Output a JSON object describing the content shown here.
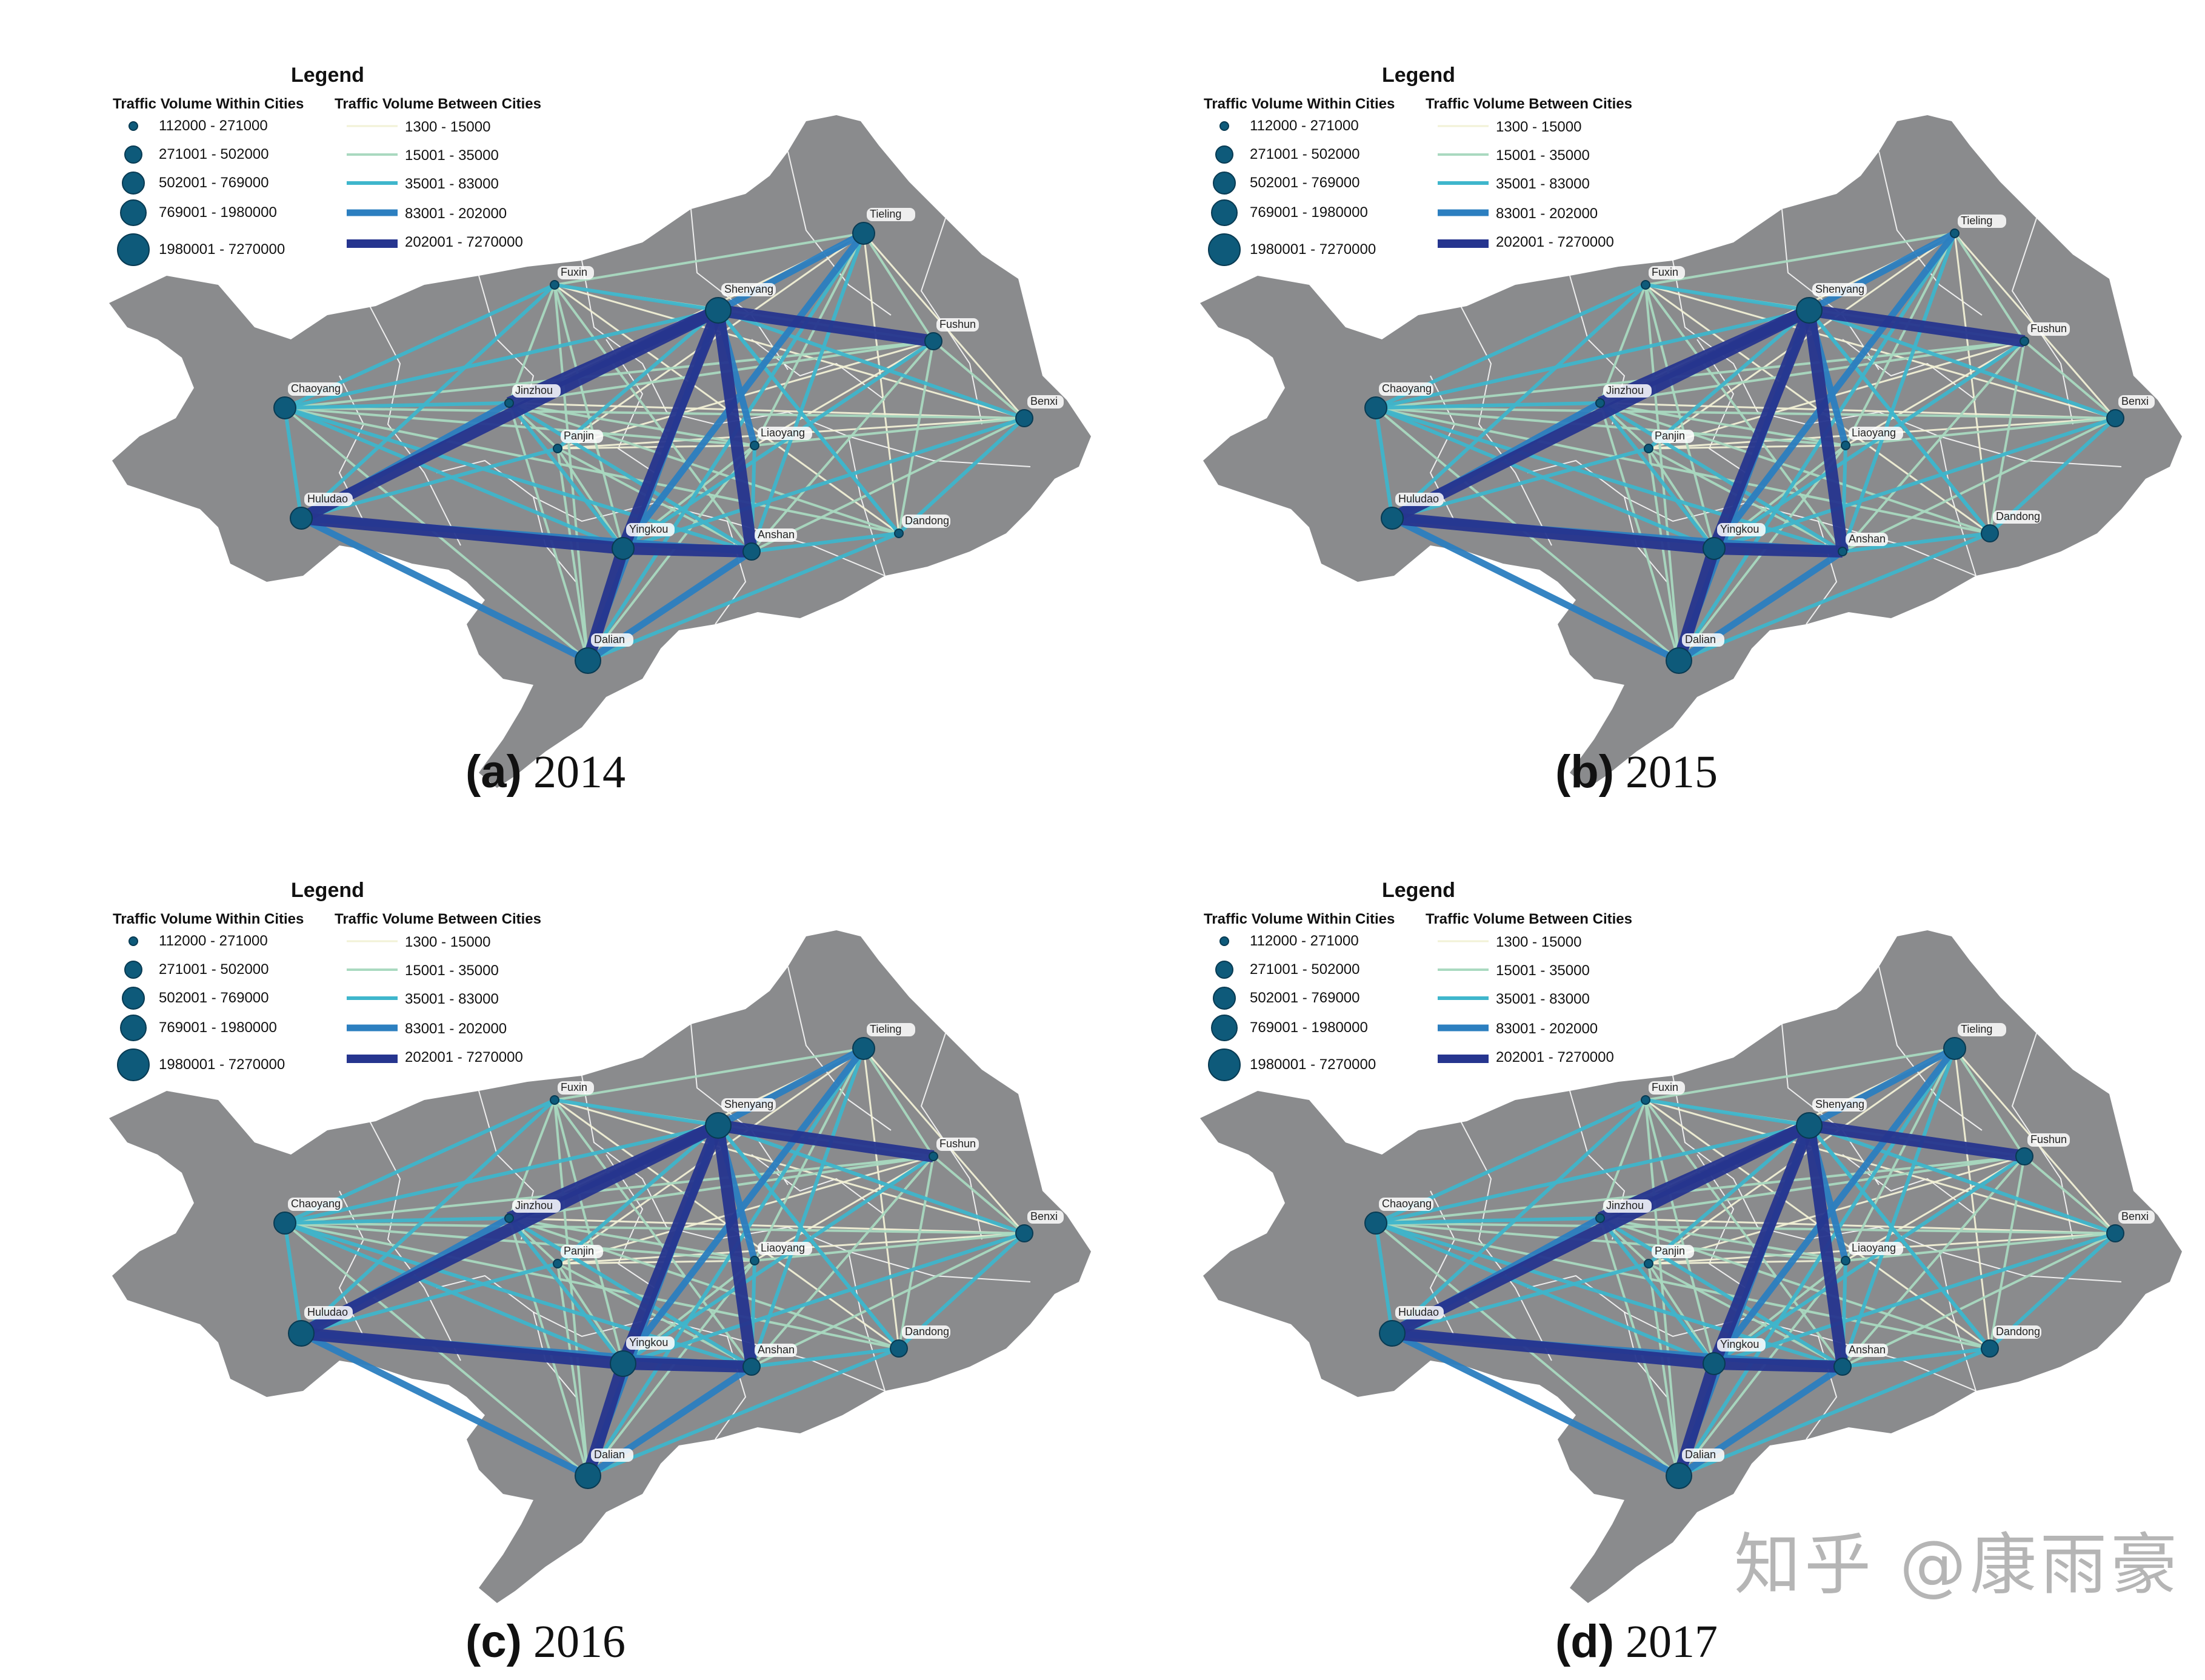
{
  "colors": {
    "map_fill": "#8a8b8d",
    "boundary": "#ffffff",
    "node": "#0e5a7a",
    "node_stroke": "#083a52",
    "flow_1": "#f2f1d6",
    "flow_2": "#a9d9c0",
    "flow_3": "#3fb6cc",
    "flow_4": "#2c7fc0",
    "flow_5": "#26358f"
  },
  "legend": {
    "title": "Legend",
    "within_heading": "Traffic Volume Within Cities",
    "between_heading": "Traffic Volume Between Cities",
    "within_classes": [
      "112000 - 271000",
      "271001 - 502000",
      "502001 - 769000",
      "769001 - 1980000",
      "1980001 - 7270000"
    ],
    "between_classes": [
      "1300 - 15000",
      "15001 - 35000",
      "35001 - 83000",
      "83001 - 202000",
      "202001 - 7270000"
    ]
  },
  "cities": [
    "Fuxin",
    "Shenyang",
    "Tieling",
    "Fushun",
    "Benxi",
    "Chaoyang",
    "Jinzhou",
    "Liaoyang",
    "Panjin",
    "Huludao",
    "Yingkou",
    "Anshan",
    "Dandong",
    "Dalian"
  ],
  "panels": [
    {
      "letter": "(a)",
      "year": "2014",
      "node_class": {
        "Fuxin": 1,
        "Shenyang": 4,
        "Tieling": 3,
        "Fushun": 2,
        "Benxi": 2,
        "Chaoyang": 3,
        "Jinzhou": 1,
        "Liaoyang": 1,
        "Panjin": 1,
        "Huludao": 3,
        "Yingkou": 3,
        "Anshan": 2,
        "Dandong": 1,
        "Dalian": 4
      }
    },
    {
      "letter": "(b)",
      "year": "2015",
      "node_class": {
        "Fuxin": 1,
        "Shenyang": 4,
        "Tieling": 1,
        "Fushun": 1,
        "Benxi": 2,
        "Chaoyang": 3,
        "Jinzhou": 1,
        "Liaoyang": 1,
        "Panjin": 1,
        "Huludao": 3,
        "Yingkou": 3,
        "Anshan": 1,
        "Dandong": 2,
        "Dalian": 4
      }
    },
    {
      "letter": "(c)",
      "year": "2016",
      "node_class": {
        "Fuxin": 1,
        "Shenyang": 4,
        "Tieling": 3,
        "Fushun": 1,
        "Benxi": 2,
        "Chaoyang": 3,
        "Jinzhou": 1,
        "Liaoyang": 1,
        "Panjin": 1,
        "Huludao": 4,
        "Yingkou": 4,
        "Anshan": 2,
        "Dandong": 2,
        "Dalian": 4
      }
    },
    {
      "letter": "(d)",
      "year": "2017",
      "node_class": {
        "Fuxin": 1,
        "Shenyang": 4,
        "Tieling": 3,
        "Fushun": 2,
        "Benxi": 2,
        "Chaoyang": 3,
        "Jinzhou": 1,
        "Liaoyang": 1,
        "Panjin": 1,
        "Huludao": 4,
        "Yingkou": 3,
        "Anshan": 2,
        "Dandong": 2,
        "Dalian": 4
      }
    }
  ],
  "flows": [
    [
      "Huludao",
      "Dalian",
      4
    ],
    [
      "Huludao",
      "Yingkou",
      5
    ],
    [
      "Huludao",
      "Shenyang",
      5
    ],
    [
      "Huludao",
      "Jinzhou",
      4
    ],
    [
      "Huludao",
      "Chaoyang",
      3
    ],
    [
      "Huludao",
      "Anshan",
      4
    ],
    [
      "Huludao",
      "Fuxin",
      3
    ],
    [
      "Huludao",
      "Panjin",
      3
    ],
    [
      "Chaoyang",
      "Shenyang",
      3
    ],
    [
      "Chaoyang",
      "Jinzhou",
      3
    ],
    [
      "Chaoyang",
      "Benxi",
      2
    ],
    [
      "Chaoyang",
      "Liaoyang",
      2
    ],
    [
      "Chaoyang",
      "Dalian",
      2
    ],
    [
      "Chaoyang",
      "Fuxin",
      3
    ],
    [
      "Chaoyang",
      "Yingkou",
      3
    ],
    [
      "Chaoyang",
      "Dandong",
      2
    ],
    [
      "Chaoyang",
      "Fushun",
      2
    ],
    [
      "Chaoyang",
      "Anshan",
      3
    ],
    [
      "Shenyang",
      "Yingkou",
      5
    ],
    [
      "Shenyang",
      "Dalian",
      4
    ],
    [
      "Shenyang",
      "Fushun",
      5
    ],
    [
      "Shenyang",
      "Tieling",
      4
    ],
    [
      "Shenyang",
      "Anshan",
      5
    ],
    [
      "Shenyang",
      "Jinzhou",
      5
    ],
    [
      "Shenyang",
      "Liaoyang",
      4
    ],
    [
      "Shenyang",
      "Fuxin",
      3
    ],
    [
      "Shenyang",
      "Benxi",
      3
    ],
    [
      "Shenyang",
      "Dandong",
      3
    ],
    [
      "Shenyang",
      "Panjin",
      3
    ],
    [
      "Yingkou",
      "Dalian",
      5
    ],
    [
      "Yingkou",
      "Anshan",
      5
    ],
    [
      "Yingkou",
      "Jinzhou",
      3
    ],
    [
      "Yingkou",
      "Tieling",
      4
    ],
    [
      "Yingkou",
      "Benxi",
      3
    ],
    [
      "Yingkou",
      "Fushun",
      3
    ],
    [
      "Dalian",
      "Anshan",
      4
    ],
    [
      "Dalian",
      "Dandong",
      3
    ],
    [
      "Dalian",
      "Jinzhou",
      2
    ],
    [
      "Dalian",
      "Tieling",
      3
    ],
    [
      "Dalian",
      "Fuxin",
      2
    ],
    [
      "Dalian",
      "Panjin",
      2
    ],
    [
      "Dandong",
      "Shenyang",
      3
    ],
    [
      "Dandong",
      "Fushun",
      2
    ],
    [
      "Dandong",
      "Benxi",
      3
    ],
    [
      "Dandong",
      "Jinzhou",
      2
    ],
    [
      "Dandong",
      "Tieling",
      1
    ],
    [
      "Dandong",
      "Anshan",
      3
    ],
    [
      "Dandong",
      "Fuxin",
      1
    ],
    [
      "Fuxin",
      "Tieling",
      2
    ],
    [
      "Fuxin",
      "Jinzhou",
      2
    ],
    [
      "Fuxin",
      "Fushun",
      2
    ],
    [
      "Fuxin",
      "Yingkou",
      2
    ],
    [
      "Fuxin",
      "Benxi",
      1
    ],
    [
      "Fuxin",
      "Anshan",
      2
    ],
    [
      "Tieling",
      "Fushun",
      2
    ],
    [
      "Tieling",
      "Benxi",
      1
    ],
    [
      "Tieling",
      "Anshan",
      3
    ],
    [
      "Tieling",
      "Liaoyang",
      2
    ],
    [
      "Tieling",
      "Jinzhou",
      1
    ],
    [
      "Fushun",
      "Benxi",
      2
    ],
    [
      "Fushun",
      "Anshan",
      2
    ],
    [
      "Fushun",
      "Jinzhou",
      2
    ],
    [
      "Fushun",
      "Liaoyang",
      1
    ],
    [
      "Benxi",
      "Anshan",
      2
    ],
    [
      "Benxi",
      "Liaoyang",
      2
    ],
    [
      "Benxi",
      "Jinzhou",
      1
    ],
    [
      "Benxi",
      "Panjin",
      1
    ],
    [
      "Jinzhou",
      "Liaoyang",
      2
    ],
    [
      "Jinzhou",
      "Anshan",
      3
    ],
    [
      "Jinzhou",
      "Panjin",
      2
    ],
    [
      "Liaoyang",
      "Anshan",
      3
    ],
    [
      "Liaoyang",
      "Dalian",
      2
    ],
    [
      "Liaoyang",
      "Panjin",
      1
    ],
    [
      "Liaoyang",
      "Yingkou",
      2
    ],
    [
      "Panjin",
      "Yingkou",
      2
    ],
    [
      "Panjin",
      "Anshan",
      2
    ],
    [
      "Panjin",
      "Tieling",
      1
    ],
    [
      "Panjin",
      "Fushun",
      1
    ]
  ],
  "watermark": "知乎 @康雨豪"
}
